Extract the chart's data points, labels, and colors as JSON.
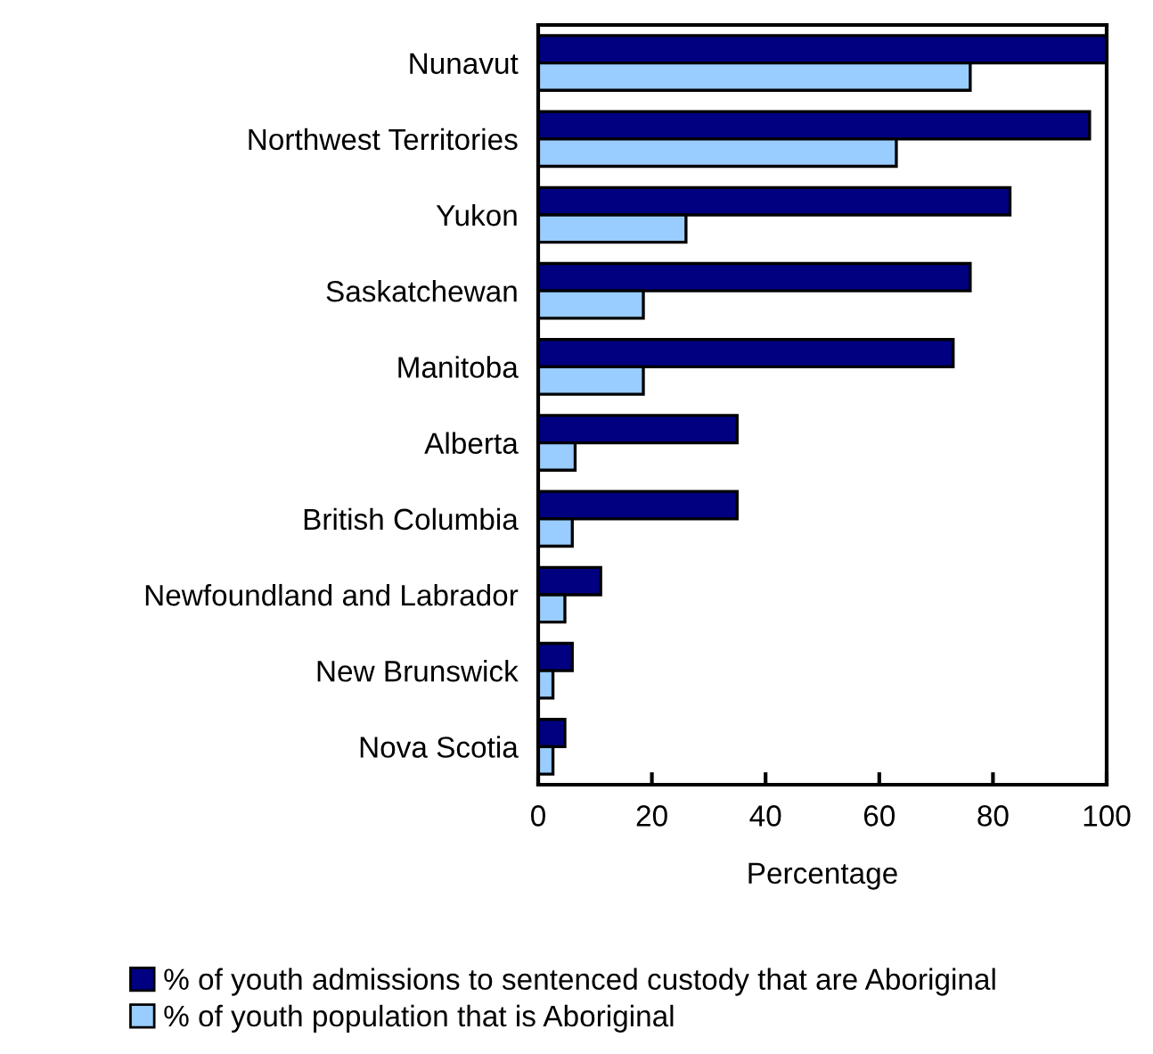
{
  "chart_data": {
    "type": "bar",
    "orientation": "horizontal",
    "xlabel": "Percentage",
    "categories": [
      "Nunavut",
      "Northwest Territories",
      "Yukon",
      "Saskatchewan",
      "Manitoba",
      "Alberta",
      "British Columbia",
      "Newfoundland and Labrador",
      "New Brunswick",
      "Nova Scotia"
    ],
    "series": [
      {
        "name": "% of youth admissions to sentenced custody that are Aboriginal",
        "color": "#000080",
        "values": [
          100,
          97,
          83,
          76,
          73,
          35,
          35,
          11,
          6,
          4.7
        ]
      },
      {
        "name": "% of youth population that is Aboriginal",
        "color": "#99ccff",
        "values": [
          76,
          63,
          26,
          18.5,
          18.5,
          6.5,
          6,
          4.7,
          2.6,
          2.6
        ]
      }
    ],
    "xlim": [
      0,
      100
    ],
    "xticks": [
      0,
      20,
      40,
      60,
      80,
      100
    ],
    "grid": false,
    "legend": "bottom left"
  }
}
